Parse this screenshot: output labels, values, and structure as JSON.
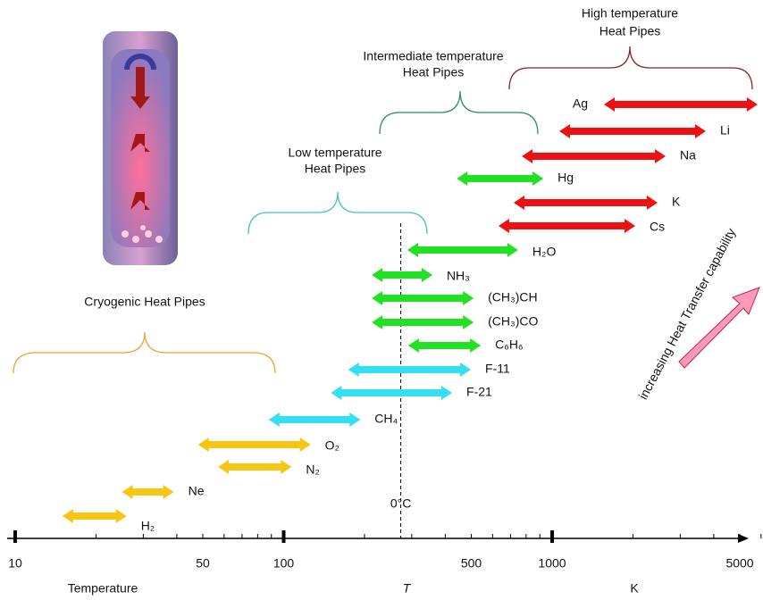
{
  "chart_data": {
    "type": "range",
    "xscale": "log",
    "xlim": [
      10,
      7000
    ],
    "xticks": [
      10,
      50,
      100,
      500,
      1000,
      5000
    ],
    "xlabel_parts": [
      "Temperature",
      "T",
      "K"
    ],
    "reference_line": {
      "value": 273,
      "label": "0°C"
    },
    "ranges": [
      {
        "label": "H₂",
        "low": 15,
        "high": 26,
        "color": "#f7c514"
      },
      {
        "label": "Ne",
        "low": 25,
        "high": 39,
        "color": "#f7c514"
      },
      {
        "label": "N₂",
        "low": 57,
        "high": 107,
        "color": "#f7c514"
      },
      {
        "label": "O₂",
        "low": 48,
        "high": 126,
        "color": "#f7c514"
      },
      {
        "label": "CH₄",
        "low": 88,
        "high": 193,
        "color": "#33dff0"
      },
      {
        "label": "F-21",
        "low": 150,
        "high": 424,
        "color": "#33dff0"
      },
      {
        "label": "F-11",
        "low": 174,
        "high": 498,
        "color": "#33dff0"
      },
      {
        "label": "C₆H₆",
        "low": 291,
        "high": 542,
        "color": "#22e022"
      },
      {
        "label": "(CH₃)CO",
        "low": 213,
        "high": 510,
        "color": "#22e022"
      },
      {
        "label": "(CH₃)CH",
        "low": 213,
        "high": 510,
        "color": "#22e022"
      },
      {
        "label": "NH₃",
        "low": 213,
        "high": 358,
        "color": "#22e022"
      },
      {
        "label": "H₂O",
        "low": 289,
        "high": 747,
        "color": "#22e022"
      },
      {
        "label": "Cs",
        "low": 631,
        "high": 2040,
        "color": "#ee1111"
      },
      {
        "label": "K",
        "low": 719,
        "high": 2470,
        "color": "#ee1111"
      },
      {
        "label": "Hg",
        "low": 441,
        "high": 927,
        "color": "#22e022"
      },
      {
        "label": "Na",
        "low": 771,
        "high": 2647,
        "color": "#ee1111"
      },
      {
        "label": "Li",
        "low": 1063,
        "high": 3735,
        "color": "#ee1111"
      },
      {
        "label": "Ag",
        "low": 1560,
        "high": 5826,
        "color": "#ee1111",
        "label_side": "left"
      }
    ],
    "groups": [
      {
        "lines": [
          "Cryogenic Heat Pipes"
        ]
      },
      {
        "lines": [
          "Low temperature",
          "Heat Pipes"
        ]
      },
      {
        "lines": [
          "Intermediate temperature",
          "Heat Pipes"
        ]
      },
      {
        "lines": [
          "High temperature",
          "Heat Pipes"
        ]
      }
    ],
    "side_note": "increasing Heat Transfer capability"
  }
}
